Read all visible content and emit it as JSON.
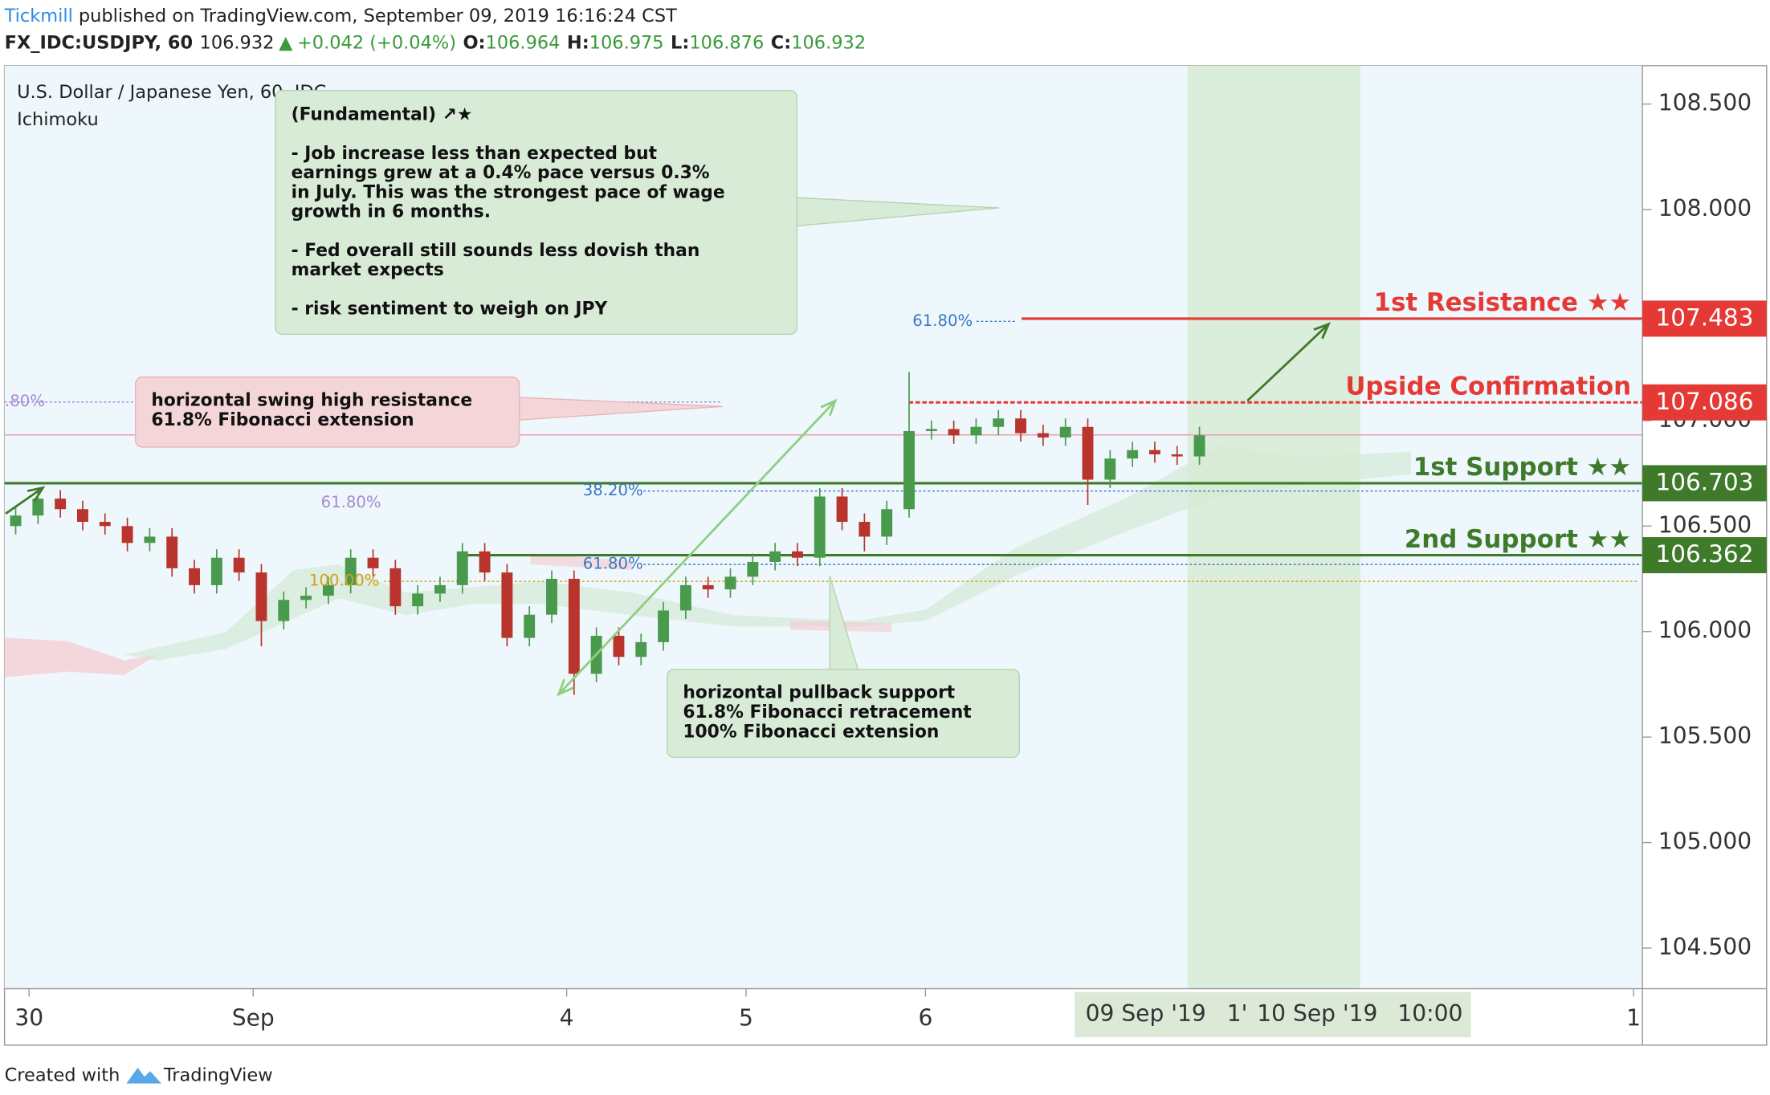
{
  "chart_data": {
    "type": "candlestick",
    "header": {
      "publisher": "Tickmill",
      "published": "published on TradingView.com, September 09, 2019 16:16:24 CST",
      "symbol": "FX_IDC:USDJPY, 60",
      "last": 106.932,
      "arrow": "▲",
      "change": "+0.042 (+0.04%)",
      "open_label": "O:",
      "open": 106.964,
      "high_label": "H:",
      "high": 106.975,
      "low_label": "L:",
      "low": 106.876,
      "close_label": "C:",
      "close": 106.932
    },
    "title": "U.S. Dollar / Japanese Yen, 60, IDC",
    "indicator": "Ichimoku",
    "up_color": "#4a9a4e",
    "down_color": "#b8342c",
    "x": [
      1.5,
      4.5,
      7.5,
      10.5,
      13.5,
      16.5,
      19.5,
      22.5,
      25.5,
      28.5,
      31.5,
      34.5,
      37.5,
      40.5,
      43.5,
      46.5,
      49.5,
      52.5,
      55.5,
      58.5,
      61.5,
      64.5,
      67.5,
      70.5,
      73.5,
      76.5,
      79.5,
      82.5,
      85.5,
      88.5,
      91.5,
      94.5,
      97.5,
      100.5,
      103.5,
      106.5,
      109.5,
      112.5,
      115.5,
      118.5,
      121.5,
      124.5,
      127.5,
      130.5,
      133.5,
      136.5,
      139.5,
      142.5,
      145.5,
      148.5,
      151.5,
      154.5,
      157.5,
      160.5
    ],
    "open": [
      106.5,
      106.55,
      106.63,
      106.58,
      106.52,
      106.5,
      106.42,
      106.45,
      106.3,
      106.22,
      106.35,
      106.28,
      106.05,
      106.15,
      106.17,
      106.22,
      106.35,
      106.3,
      106.12,
      106.18,
      106.22,
      106.38,
      106.28,
      105.97,
      106.08,
      106.25,
      105.8,
      105.98,
      105.88,
      105.95,
      106.1,
      106.22,
      106.2,
      106.26,
      106.33,
      106.38,
      106.35,
      106.64,
      106.52,
      106.45,
      106.58,
      106.95,
      106.96,
      106.93,
      106.97,
      107.01,
      106.94,
      106.92,
      106.97,
      106.72,
      106.82,
      106.86,
      106.84,
      106.83
    ],
    "high": [
      106.59,
      106.67,
      106.67,
      106.62,
      106.56,
      106.54,
      106.49,
      106.49,
      106.34,
      106.39,
      106.39,
      106.32,
      106.19,
      106.21,
      106.26,
      106.39,
      106.39,
      106.34,
      106.22,
      106.26,
      106.42,
      106.42,
      106.32,
      106.12,
      106.29,
      106.29,
      106.02,
      106.02,
      105.99,
      106.14,
      106.26,
      106.26,
      106.3,
      106.37,
      106.42,
      106.42,
      106.68,
      106.68,
      106.56,
      106.62,
      107.23,
      107.0,
      107.0,
      107.01,
      107.05,
      107.05,
      106.98,
      107.01,
      107.01,
      106.86,
      106.9,
      106.9,
      106.88,
      106.97
    ],
    "low": [
      106.46,
      106.51,
      106.54,
      106.48,
      106.46,
      106.38,
      106.38,
      106.26,
      106.18,
      106.18,
      106.24,
      105.93,
      106.01,
      106.11,
      106.13,
      106.18,
      106.26,
      106.08,
      106.08,
      106.14,
      106.18,
      106.24,
      105.93,
      105.93,
      106.04,
      105.7,
      105.76,
      105.84,
      105.84,
      105.91,
      106.06,
      106.16,
      106.16,
      106.22,
      106.29,
      106.31,
      106.31,
      106.48,
      106.38,
      106.41,
      106.54,
      106.91,
      106.89,
      106.89,
      106.93,
      106.9,
      106.88,
      106.88,
      106.6,
      106.68,
      106.78,
      106.8,
      106.79,
      106.79
    ],
    "close": [
      106.55,
      106.63,
      106.58,
      106.52,
      106.5,
      106.42,
      106.45,
      106.3,
      106.22,
      106.35,
      106.28,
      106.05,
      106.15,
      106.17,
      106.22,
      106.35,
      106.3,
      106.12,
      106.18,
      106.22,
      106.38,
      106.28,
      105.97,
      106.08,
      106.25,
      105.8,
      105.98,
      105.88,
      105.95,
      106.1,
      106.22,
      106.2,
      106.26,
      106.33,
      106.38,
      106.35,
      106.64,
      106.52,
      106.45,
      106.58,
      106.95,
      106.96,
      106.93,
      106.97,
      107.01,
      106.94,
      106.92,
      106.97,
      106.72,
      106.82,
      106.86,
      106.84,
      106.83,
      106.93
    ],
    "xlim": [
      0,
      220
    ],
    "xticks": [
      {
        "value": 3.3,
        "label": "30"
      },
      {
        "value": 33.4,
        "label": "Sep"
      },
      {
        "value": 75.5,
        "label": "4"
      },
      {
        "value": 99.6,
        "label": "5"
      },
      {
        "value": 123.7,
        "label": "6"
      },
      {
        "value": 218.8,
        "label": "1"
      }
    ],
    "time_range": {
      "start": 158.9,
      "end": 182.1,
      "labels": [
        "09 Sep '19",
        "1'",
        "10 Sep '19",
        "10:00"
      ]
    },
    "ylim": [
      104.3,
      108.7
    ],
    "yticks": [
      {
        "value": 104.5,
        "label": "104.500"
      },
      {
        "value": 105,
        "label": "105.000"
      },
      {
        "value": 105.5,
        "label": "105.500"
      },
      {
        "value": 106,
        "label": "106.000"
      },
      {
        "value": 106.5,
        "label": "106.500"
      },
      {
        "value": 107,
        "label": "107.000"
      },
      {
        "value": 107.5,
        "label": "107.500"
      },
      {
        "value": 108,
        "label": "108.000"
      },
      {
        "value": 108.5,
        "label": "108.500"
      }
    ],
    "fib_levels": [
      {
        "label": "61.80%",
        "value": 107.47,
        "color": "#3a78c0"
      },
      {
        "label": ".80%",
        "value": 107.088,
        "color": "#a58ad0"
      },
      {
        "label": "38.20%",
        "value": 106.666,
        "color": "#3a78c0"
      },
      {
        "label": "61.80%",
        "value": 106.61,
        "color": "#a58ad0"
      },
      {
        "label": "61.80%",
        "value": 106.318,
        "color": "#3a78c0"
      },
      {
        "label": "100.00%",
        "value": 106.238,
        "color": "#d4a018"
      }
    ],
    "levels": [
      {
        "label": "1st Resistance ★★",
        "value": 107.483,
        "value_label": "107.483",
        "color": "#e53935"
      },
      {
        "label": "Upside Confirmation",
        "value": 107.086,
        "value_label": "107.086",
        "color": "#e53935"
      },
      {
        "label": "1st Support ★★",
        "value": 106.703,
        "value_label": "106.703",
        "color": "#3f7a2b"
      },
      {
        "label": "2nd Support ★★",
        "value": 106.362,
        "value_label": "106.362",
        "color": "#3f7a2b"
      }
    ],
    "callouts": [
      {
        "lines": [
          "(Fundamental) ↗★",
          "",
          "- Job increase less than expected but",
          "earnings grew at a 0.4% pace versus 0.3%",
          "in July. This was the strongest pace of wage",
          "growth in 6 months.",
          "",
          "- Fed overall still sounds less dovish than",
          "market expects",
          "",
          "- risk sentiment to weigh on JPY"
        ]
      },
      {
        "lines": [
          "horizontal swing high resistance",
          "61.8% Fibonacci extension"
        ]
      },
      {
        "lines": [
          "horizontal pullback support",
          "61.8% Fibonacci retracement",
          "100% Fibonacci extension"
        ]
      }
    ],
    "footer": {
      "created": "Created with",
      "brand": "TradingView"
    }
  }
}
